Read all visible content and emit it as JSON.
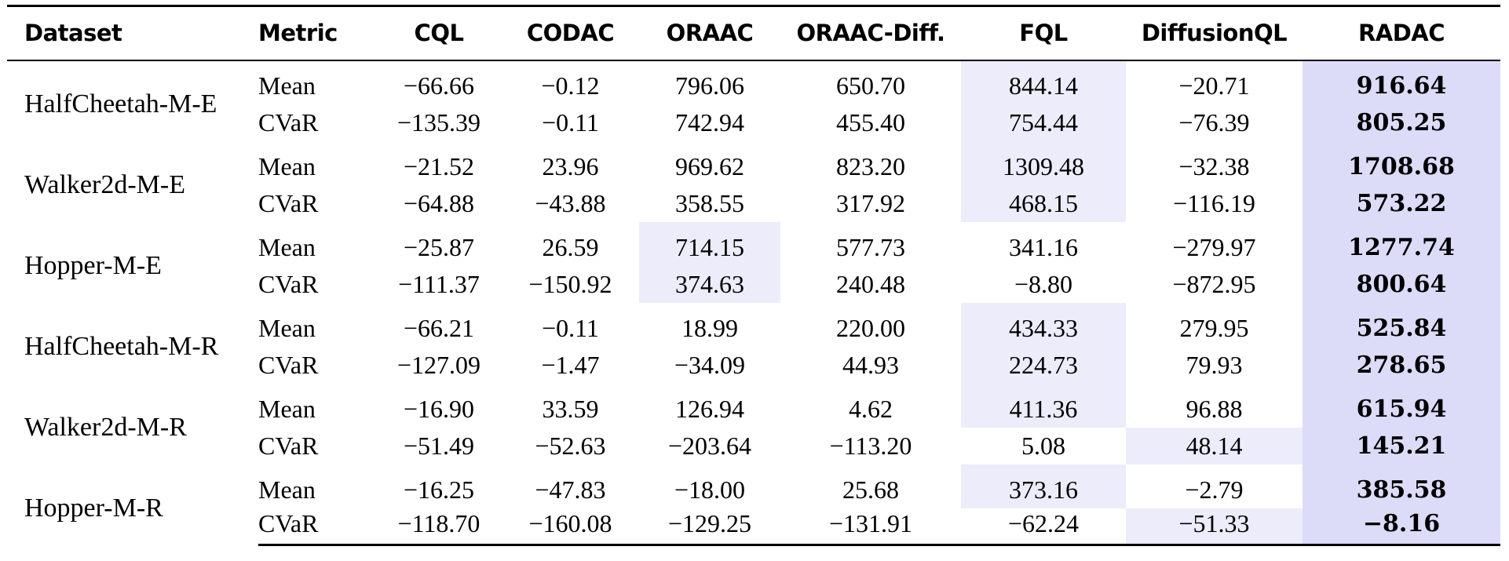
{
  "colors": {
    "best_highlight": "#dcdcf8",
    "second_highlight": "#ececfb"
  },
  "table": {
    "headers": [
      "Dataset",
      "Metric",
      "CQL",
      "CODAC",
      "ORAAC",
      "ORAAC-Diff.",
      "FQL",
      "DiffusionQL",
      "RADAC"
    ],
    "groups": [
      {
        "dataset": "HalfCheetah-M-E",
        "rows": [
          {
            "metric": "Mean",
            "values": [
              "−66.66",
              "−0.12",
              "796.06",
              "650.70",
              "844.14",
              "−20.71",
              "916.64"
            ]
          },
          {
            "metric": "CVaR",
            "values": [
              "−135.39",
              "−0.11",
              "742.94",
              "455.40",
              "754.44",
              "−76.39",
              "805.25"
            ]
          }
        ]
      },
      {
        "dataset": "Walker2d-M-E",
        "rows": [
          {
            "metric": "Mean",
            "values": [
              "−21.52",
              "23.96",
              "969.62",
              "823.20",
              "1309.48",
              "−32.38",
              "1708.68"
            ]
          },
          {
            "metric": "CVaR",
            "values": [
              "−64.88",
              "−43.88",
              "358.55",
              "317.92",
              "468.15",
              "−116.19",
              "573.22"
            ]
          }
        ]
      },
      {
        "dataset": "Hopper-M-E",
        "rows": [
          {
            "metric": "Mean",
            "values": [
              "−25.87",
              "26.59",
              "714.15",
              "577.73",
              "341.16",
              "−279.97",
              "1277.74"
            ]
          },
          {
            "metric": "CVaR",
            "values": [
              "−111.37",
              "−150.92",
              "374.63",
              "240.48",
              "−8.80",
              "−872.95",
              "800.64"
            ]
          }
        ]
      },
      {
        "dataset": "HalfCheetah-M-R",
        "rows": [
          {
            "metric": "Mean",
            "values": [
              "−66.21",
              "−0.11",
              "18.99",
              "220.00",
              "434.33",
              "279.95",
              "525.84"
            ]
          },
          {
            "metric": "CVaR",
            "values": [
              "−127.09",
              "−1.47",
              "−34.09",
              "44.93",
              "224.73",
              "79.93",
              "278.65"
            ]
          }
        ]
      },
      {
        "dataset": "Walker2d-M-R",
        "rows": [
          {
            "metric": "Mean",
            "values": [
              "−16.90",
              "33.59",
              "126.94",
              "4.62",
              "411.36",
              "96.88",
              "615.94"
            ]
          },
          {
            "metric": "CVaR",
            "values": [
              "−51.49",
              "−52.63",
              "−203.64",
              "−113.20",
              "5.08",
              "48.14",
              "145.21"
            ]
          }
        ]
      },
      {
        "dataset": "Hopper-M-R",
        "rows": [
          {
            "metric": "Mean",
            "values": [
              "−16.25",
              "−47.83",
              "−18.00",
              "25.68",
              "373.16",
              "−2.79",
              "385.58"
            ]
          },
          {
            "metric": "CVaR",
            "values": [
              "−118.70",
              "−160.08",
              "−129.25",
              "−131.91",
              "−62.24",
              "−51.33",
              "−8.16"
            ]
          }
        ]
      }
    ]
  }
}
